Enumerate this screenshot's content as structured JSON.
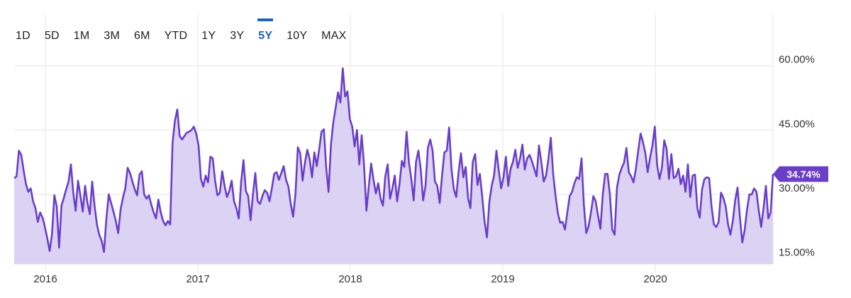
{
  "range_selector": {
    "tabs": [
      "1D",
      "5D",
      "1M",
      "3M",
      "6M",
      "YTD",
      "1Y",
      "3Y",
      "5Y",
      "10Y",
      "MAX"
    ],
    "active": "5Y"
  },
  "colors": {
    "line": "#6a3fc8",
    "fill": "#dcd2f3",
    "grid": "#e4e4e4",
    "badge": "#6a3fc8",
    "active_tab": "#1e64b4"
  },
  "chart_data": {
    "type": "area",
    "x_tick_labels": [
      "2016",
      "2017",
      "2018",
      "2019",
      "2020"
    ],
    "y_tick_labels": [
      "60.00%",
      "45.00%",
      "30.00%",
      "15.00%"
    ],
    "y_ticks": [
      60,
      45,
      30,
      15
    ],
    "ylim": [
      13.8,
      72
    ],
    "grid": true,
    "current_value_label": "34.74%",
    "series": [
      {
        "values": [
          33.8,
          34.2,
          40.2,
          39.2,
          35.6,
          32.4,
          30.6,
          31.4,
          28.4,
          26.8,
          23.6,
          25.8,
          24.6,
          22.4,
          19.8,
          16.8,
          20.8,
          29.8,
          27.2,
          17.6,
          27.4,
          29.2,
          31.2,
          33.0,
          37.0,
          30.4,
          26.2,
          33.2,
          29.8,
          26.0,
          32.0,
          28.0,
          25.4,
          33.0,
          27.4,
          23.0,
          20.6,
          19.2,
          16.6,
          24.4,
          30.0,
          28.0,
          26.0,
          23.8,
          21.0,
          26.4,
          29.2,
          31.4,
          36.2,
          35.0,
          33.0,
          31.2,
          29.8,
          34.6,
          35.4,
          30.0,
          29.0,
          29.8,
          27.6,
          25.8,
          24.4,
          28.8,
          25.8,
          23.8,
          22.8,
          23.8,
          23.0,
          42.0,
          47.2,
          49.8,
          43.6,
          42.8,
          43.6,
          44.4,
          44.6,
          45.0,
          45.8,
          44.2,
          41.4,
          33.6,
          31.8,
          34.4,
          32.8,
          38.8,
          38.4,
          33.2,
          29.8,
          30.4,
          35.4,
          32.0,
          29.4,
          30.8,
          33.2,
          28.4,
          26.8,
          24.4,
          32.8,
          38.0,
          30.8,
          29.6,
          24.0,
          30.0,
          35.0,
          28.4,
          27.8,
          29.6,
          31.0,
          30.4,
          28.4,
          31.4,
          34.8,
          35.2,
          33.4,
          35.0,
          36.6,
          33.4,
          31.8,
          27.8,
          24.8,
          30.2,
          41.0,
          39.6,
          33.2,
          37.4,
          40.4,
          38.2,
          34.0,
          39.8,
          36.6,
          40.4,
          44.6,
          45.2,
          36.2,
          30.6,
          41.6,
          46.8,
          50.2,
          53.8,
          51.4,
          59.4,
          52.8,
          54.0,
          47.6,
          45.8,
          41.2,
          45.0,
          37.0,
          43.8,
          36.8,
          26.2,
          31.8,
          37.2,
          33.4,
          30.2,
          32.6,
          29.0,
          27.4,
          34.2,
          37.0,
          29.0,
          31.4,
          34.4,
          28.4,
          32.4,
          37.8,
          36.4,
          44.6,
          37.4,
          33.6,
          28.6,
          37.6,
          40.2,
          35.8,
          28.6,
          32.0,
          40.8,
          42.8,
          40.2,
          33.0,
          32.0,
          28.0,
          34.4,
          39.8,
          40.2,
          45.6,
          35.8,
          31.2,
          29.4,
          35.2,
          39.6,
          34.0,
          36.4,
          29.2,
          26.8,
          37.6,
          39.4,
          32.2,
          34.8,
          29.4,
          23.6,
          20.0,
          28.2,
          32.0,
          34.4,
          40.2,
          35.6,
          31.4,
          34.0,
          38.8,
          32.0,
          36.0,
          37.6,
          40.4,
          36.2,
          38.4,
          41.6,
          35.8,
          38.4,
          39.2,
          37.8,
          36.0,
          34.2,
          41.4,
          37.6,
          33.0,
          34.4,
          38.2,
          43.2,
          34.8,
          29.8,
          25.6,
          23.4,
          23.6,
          21.8,
          25.8,
          29.6,
          30.6,
          32.6,
          34.0,
          33.6,
          38.4,
          27.6,
          21.0,
          22.6,
          25.8,
          29.6,
          28.4,
          25.0,
          22.0,
          30.0,
          34.8,
          34.8,
          30.0,
          21.8,
          20.6,
          31.6,
          34.6,
          36.2,
          37.4,
          40.8,
          35.2,
          34.2,
          32.8,
          36.0,
          40.2,
          44.2,
          42.2,
          39.6,
          35.2,
          38.6,
          41.4,
          45.8,
          36.8,
          33.6,
          36.2,
          42.6,
          40.6,
          33.6,
          39.4,
          33.8,
          34.2,
          36.0,
          32.4,
          34.4,
          30.6,
          37.0,
          29.4,
          34.4,
          34.6,
          26.8,
          24.6,
          31.2,
          33.6,
          34.0,
          33.8,
          27.2,
          23.0,
          22.4,
          23.6,
          30.4,
          29.2,
          27.2,
          23.0,
          20.6,
          23.8,
          28.6,
          31.6,
          24.8,
          18.8,
          21.6,
          26.4,
          30.0,
          30.0,
          31.4,
          30.6,
          26.2,
          22.4,
          26.8,
          32.0,
          24.4,
          25.8,
          34.74
        ]
      }
    ]
  }
}
